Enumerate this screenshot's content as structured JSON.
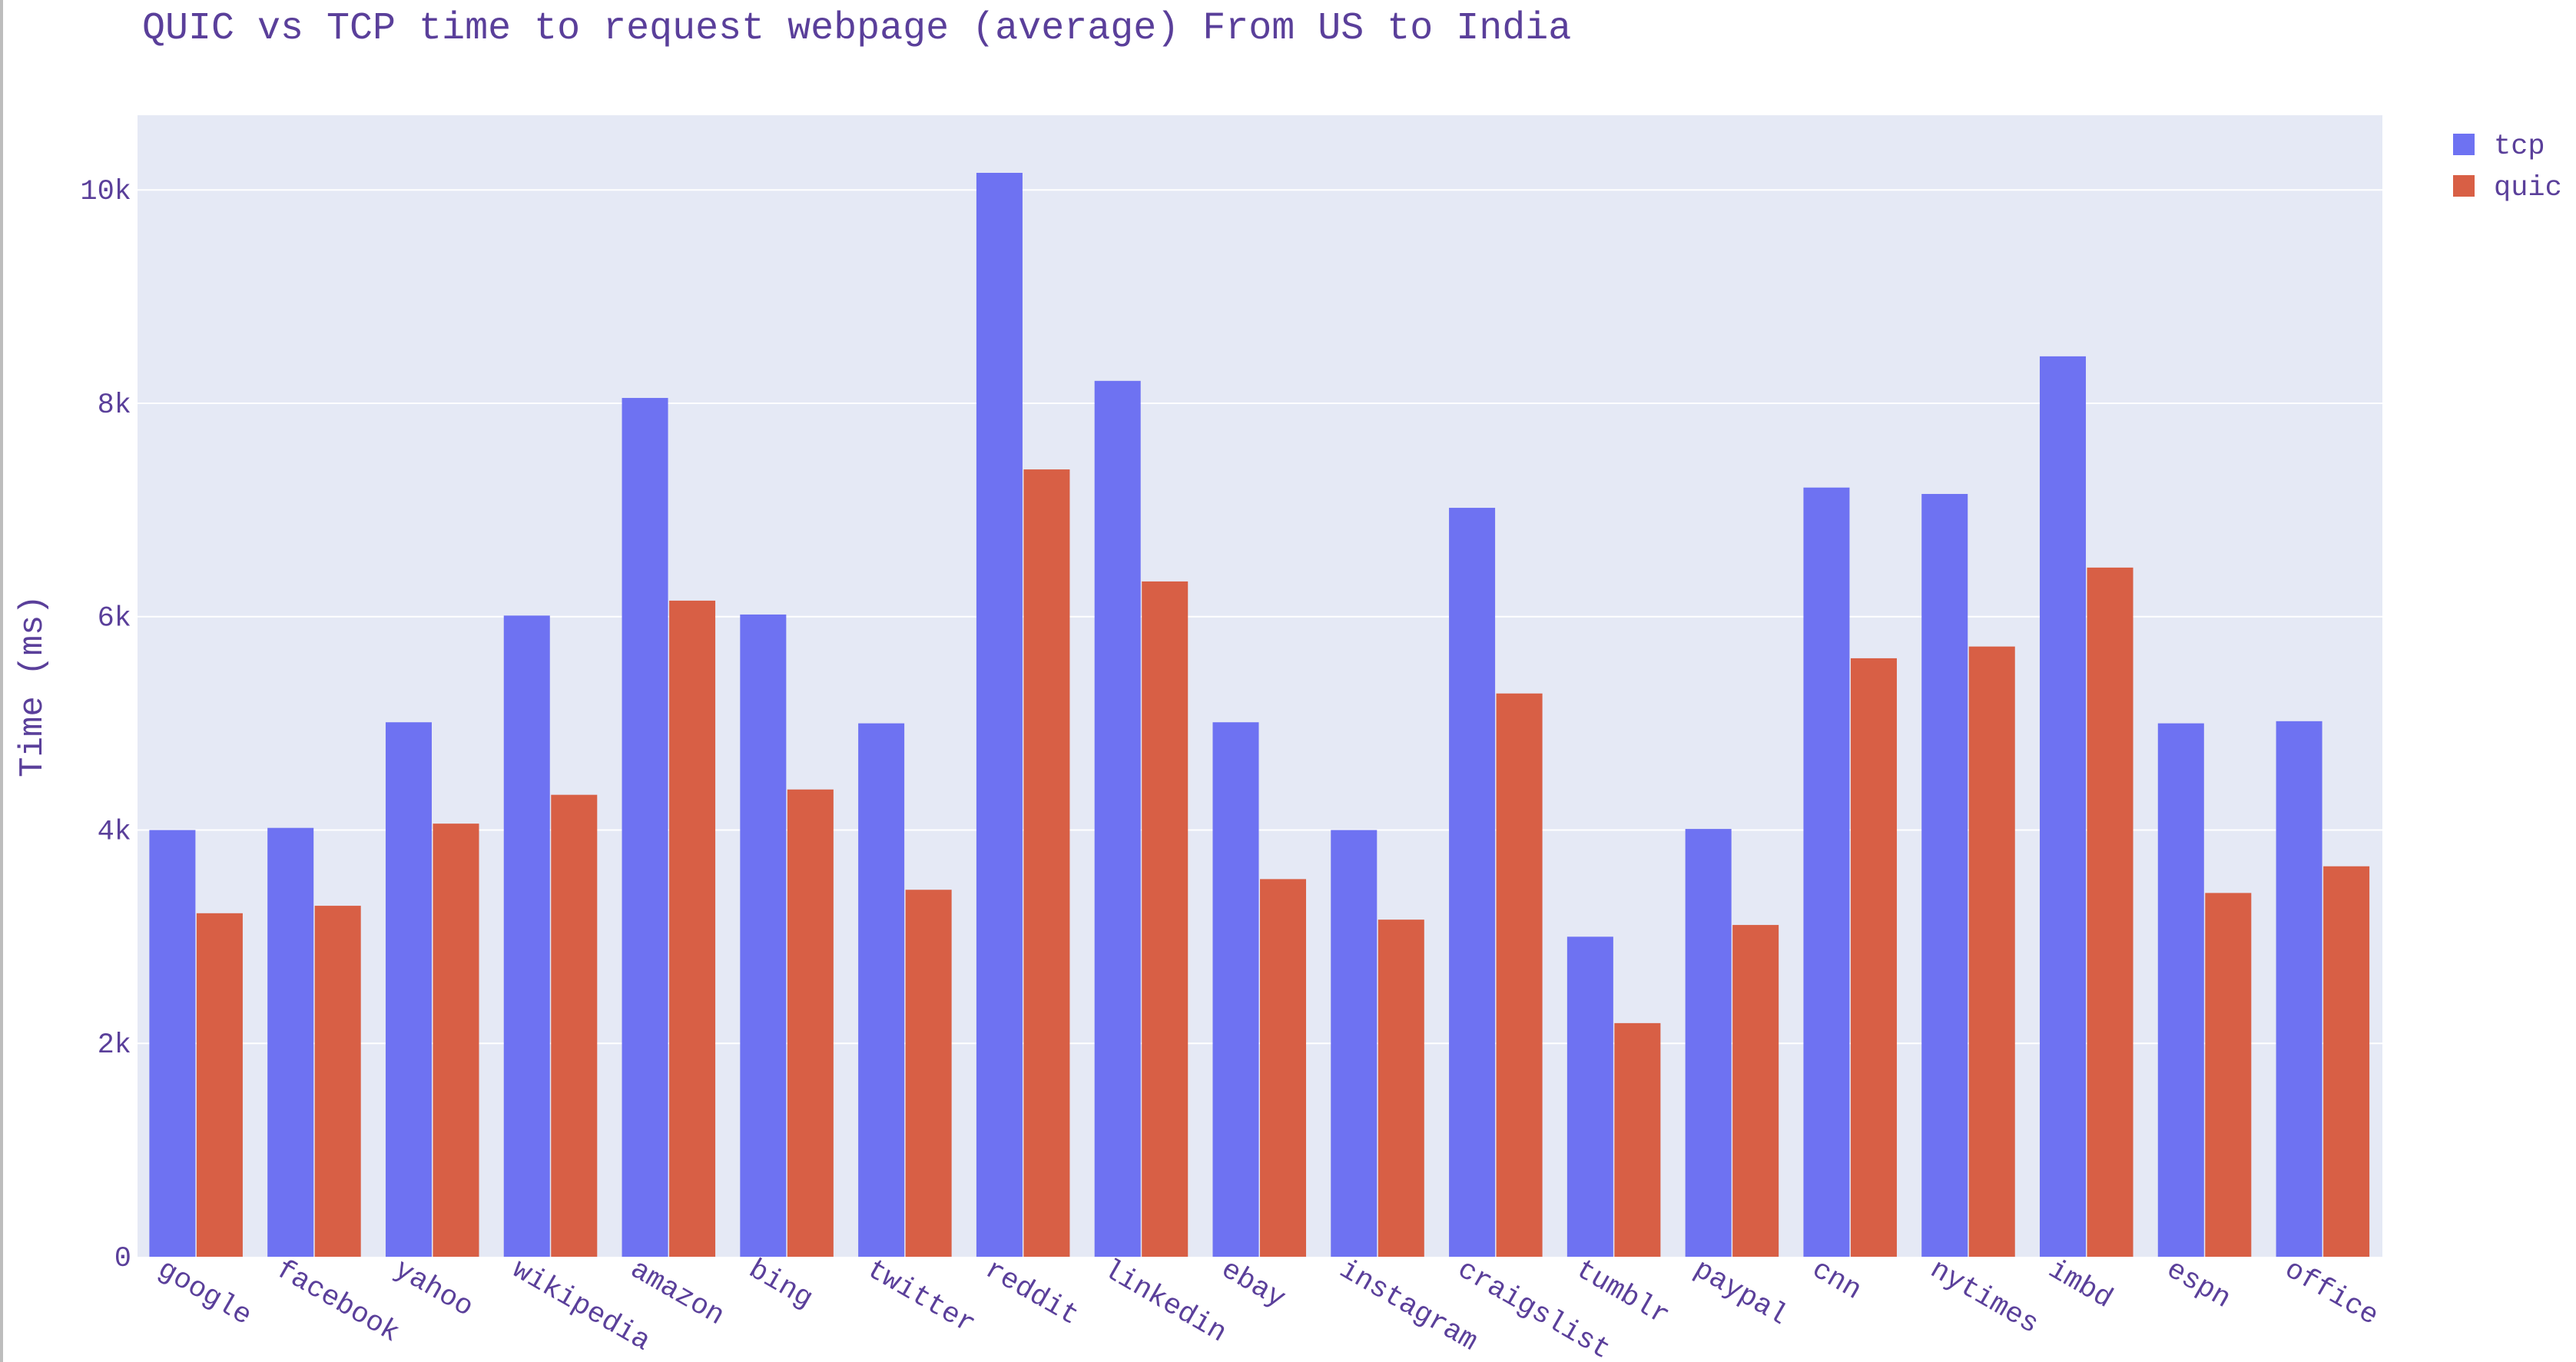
{
  "chart_data": {
    "type": "bar",
    "title": "QUIC vs TCP time to request webpage (average) From US to India",
    "xlabel": "",
    "ylabel": "Time (ms)",
    "ylim": [
      0,
      10700
    ],
    "yticks": [
      0,
      2000,
      4000,
      6000,
      8000,
      10000
    ],
    "ytick_labels": [
      "0",
      "2k",
      "4k",
      "6k",
      "8k",
      "10k"
    ],
    "grid": true,
    "legend_position": "top-right",
    "categories": [
      "google",
      "facebook",
      "yahoo",
      "wikipedia",
      "amazon",
      "bing",
      "twitter",
      "reddit",
      "linkedin",
      "ebay",
      "instagram",
      "craigslist",
      "tumblr",
      "paypal",
      "cnn",
      "nytimes",
      "imbd",
      "espn",
      "office"
    ],
    "series": [
      {
        "name": "tcp",
        "color": "#6e72f2",
        "values": [
          4000,
          4020,
          5010,
          6010,
          8050,
          6020,
          5000,
          10160,
          8210,
          5010,
          4000,
          7020,
          3000,
          4010,
          7210,
          7150,
          8440,
          5000,
          5020
        ]
      },
      {
        "name": "quic",
        "color": "#d85f45",
        "values": [
          3220,
          3290,
          4060,
          4330,
          6150,
          4380,
          3440,
          7380,
          6330,
          3540,
          3160,
          5280,
          2190,
          3110,
          5610,
          5720,
          6460,
          3410,
          3660
        ]
      }
    ]
  },
  "colors": {
    "plot_background": "#e5e9f5",
    "gridline": "#ffffff",
    "text": "#5a3f9a"
  }
}
